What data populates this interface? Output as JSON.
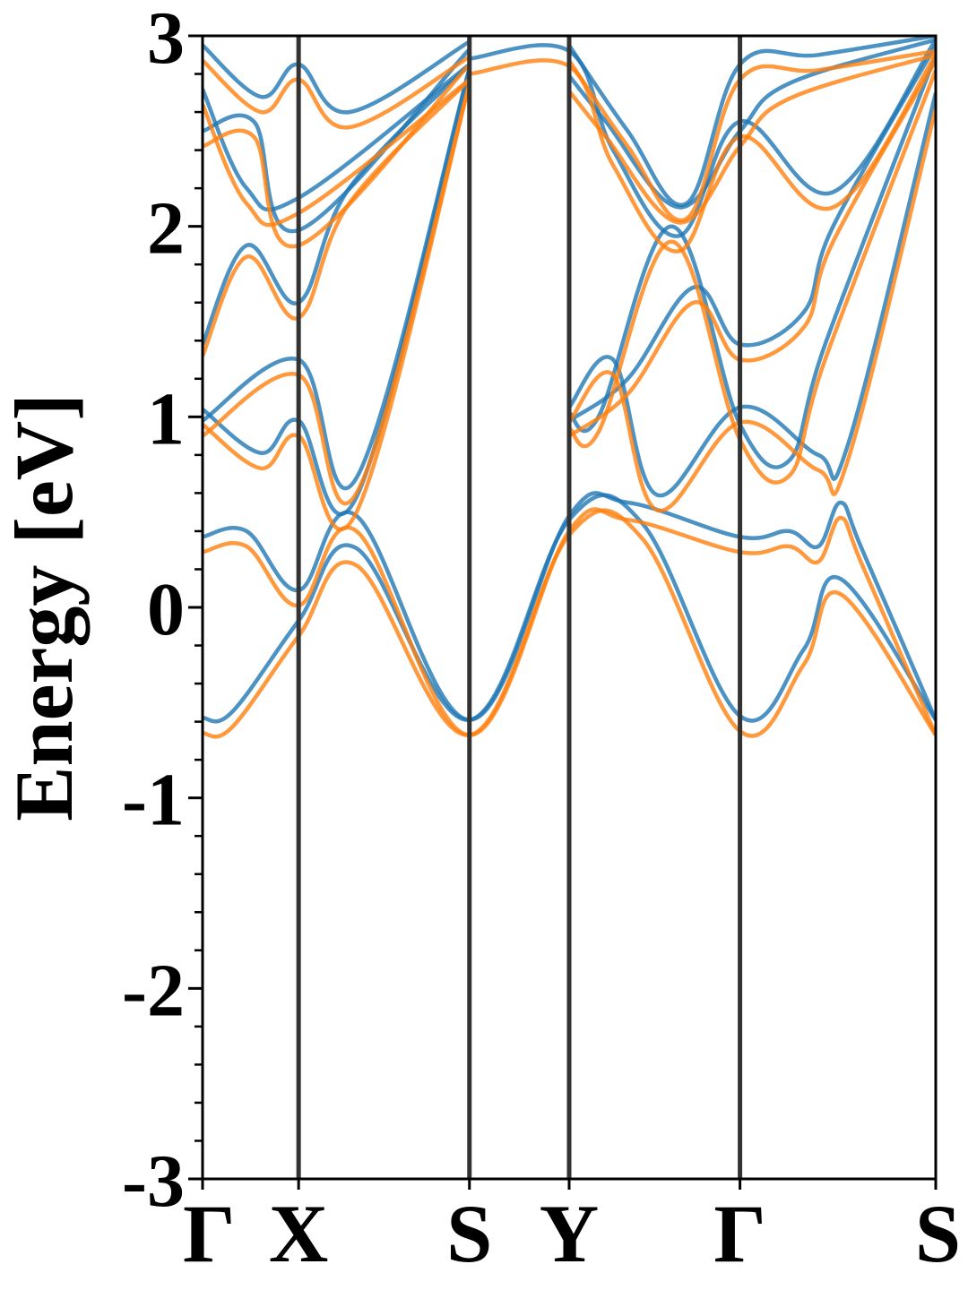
{
  "chart_data": {
    "type": "line",
    "title": "",
    "xlabel": "",
    "ylabel": "Energy [eV]",
    "ylim": [
      -3,
      3
    ],
    "yticks": [
      {
        "value": 3,
        "label": "3"
      },
      {
        "value": 2,
        "label": "2"
      },
      {
        "value": 1,
        "label": "1"
      },
      {
        "value": 0,
        "label": "0"
      },
      {
        "value": -1,
        "label": "-1"
      },
      {
        "value": -2,
        "label": "-2"
      },
      {
        "value": -3,
        "label": "-3"
      }
    ],
    "y_minor_step": 0.2,
    "k_path": [
      {
        "label": "Γ",
        "k": 0.0
      },
      {
        "label": "X",
        "k": 0.131
      },
      {
        "label": "S",
        "k": 0.364
      },
      {
        "label": "Y",
        "k": 0.5
      },
      {
        "label": "Γ",
        "k": 0.733
      },
      {
        "label": "S",
        "k": 1.0
      }
    ],
    "xlim": [
      0,
      1
    ],
    "grid": false,
    "legend": "none",
    "series": [
      {
        "color": "#1f77b4",
        "bands": [
          {
            "k": [
              0,
              0.04,
              0.131,
              0.21,
              0.364,
              0.5,
              0.6,
              0.733,
              0.82,
              0.87,
              1.0
            ],
            "e": [
              -0.58,
              -0.55,
              -0.07,
              0.31,
              -0.59,
              0.46,
              0.44,
              -0.57,
              -0.22,
              0.15,
              -0.59
            ]
          },
          {
            "k": [
              0,
              0.06,
              0.131,
              0.21,
              0.364,
              0.5,
              0.58,
              0.733,
              0.8,
              0.84,
              0.87,
              0.9,
              1.0
            ],
            "e": [
              0.37,
              0.4,
              0.09,
              0.48,
              -0.59,
              0.48,
              0.55,
              0.37,
              0.4,
              0.32,
              0.55,
              0.3,
              -0.59
            ]
          },
          {
            "k": [
              0,
              0.08,
              0.131,
              0.21,
              0.364
            ],
            "e": [
              1.04,
              0.81,
              0.98,
              0.58,
              2.83
            ]
          },
          {
            "k": [
              0,
              0.131,
              0.21,
              0.364
            ],
            "e": [
              0.98,
              1.3,
              0.68,
              2.83
            ]
          },
          {
            "k": [
              0.5,
              0.56,
              0.62,
              0.733,
              0.84,
              0.88,
              1.0
            ],
            "e": [
              1.05,
              1.3,
              0.59,
              1.05,
              0.8,
              0.85,
              2.7
            ]
          },
          {
            "k": [
              0.5,
              0.54,
              0.64,
              0.733,
              0.8,
              0.85,
              1.0
            ],
            "e": [
              1.02,
              1.0,
              2.0,
              0.96,
              0.77,
              1.39,
              2.9
            ]
          },
          {
            "k": [
              0.5,
              0.58,
              0.67,
              0.733,
              0.82,
              0.86,
              1.0
            ],
            "e": [
              0.98,
              1.2,
              1.68,
              1.38,
              1.55,
              2.0,
              2.95
            ]
          },
          {
            "k": [
              0,
              0.06,
              0.131,
              0.2,
              0.364
            ],
            "e": [
              1.38,
              1.9,
              1.6,
              2.2,
              2.85
            ]
          },
          {
            "k": [
              0,
              0.06,
              0.131,
              0.364
            ],
            "e": [
              2.72,
              2.2,
              2.15,
              2.85
            ]
          },
          {
            "k": [
              0,
              0.07,
              0.131,
              0.364
            ],
            "e": [
              2.5,
              2.55,
              1.98,
              2.93
            ]
          },
          {
            "k": [
              0,
              0.08,
              0.131,
              0.2,
              0.364
            ],
            "e": [
              2.95,
              2.68,
              2.85,
              2.6,
              2.97
            ]
          },
          {
            "k": [
              0.364,
              0.5,
              0.56,
              0.65,
              0.733,
              0.86,
              1.0
            ],
            "e": [
              2.88,
              2.92,
              2.4,
              1.95,
              2.55,
              2.18,
              2.98
            ]
          },
          {
            "k": [
              0.5,
              0.55,
              0.65,
              0.733,
              0.8,
              1.0
            ],
            "e": [
              2.79,
              2.55,
              2.1,
              2.5,
              2.75,
              2.98
            ]
          },
          {
            "k": [
              0.5,
              0.58,
              0.66,
              0.733,
              0.84,
              1.0
            ],
            "e": [
              2.95,
              2.5,
              2.12,
              2.85,
              2.9,
              3.0
            ]
          }
        ]
      },
      {
        "color": "#ff7f0e",
        "bands": [
          {
            "k": [
              0,
              0.04,
              0.131,
              0.21,
              0.364,
              0.5,
              0.6,
              0.733,
              0.82,
              0.87,
              1.0
            ],
            "e": [
              -0.66,
              -0.63,
              -0.15,
              0.22,
              -0.67,
              0.38,
              0.36,
              -0.65,
              -0.3,
              0.07,
              -0.67
            ]
          },
          {
            "k": [
              0,
              0.06,
              0.131,
              0.21,
              0.364,
              0.5,
              0.58,
              0.733,
              0.8,
              0.84,
              0.87,
              0.9,
              1.0
            ],
            "e": [
              0.29,
              0.32,
              0.01,
              0.4,
              -0.67,
              0.4,
              0.46,
              0.29,
              0.32,
              0.24,
              0.47,
              0.22,
              -0.67
            ]
          },
          {
            "k": [
              0,
              0.08,
              0.131,
              0.21,
              0.364
            ],
            "e": [
              0.96,
              0.73,
              0.9,
              0.5,
              2.75
            ]
          },
          {
            "k": [
              0,
              0.131,
              0.21,
              0.364
            ],
            "e": [
              0.9,
              1.22,
              0.6,
              2.75
            ]
          },
          {
            "k": [
              0.5,
              0.56,
              0.62,
              0.733,
              0.84,
              0.88,
              1.0
            ],
            "e": [
              0.97,
              1.22,
              0.51,
              0.97,
              0.72,
              0.77,
              2.62
            ]
          },
          {
            "k": [
              0.5,
              0.54,
              0.64,
              0.733,
              0.8,
              0.85,
              1.0
            ],
            "e": [
              0.94,
              0.92,
              1.92,
              0.88,
              0.69,
              1.31,
              2.82
            ]
          },
          {
            "k": [
              0.5,
              0.58,
              0.67,
              0.733,
              0.82,
              0.86,
              1.0
            ],
            "e": [
              0.9,
              1.12,
              1.6,
              1.3,
              1.47,
              1.92,
              2.87
            ]
          },
          {
            "k": [
              0,
              0.06,
              0.131,
              0.2,
              0.364
            ],
            "e": [
              1.32,
              1.84,
              1.52,
              2.12,
              2.77
            ]
          },
          {
            "k": [
              0,
              0.06,
              0.131,
              0.364
            ],
            "e": [
              2.64,
              2.12,
              2.07,
              2.77
            ]
          },
          {
            "k": [
              0,
              0.07,
              0.131,
              0.364
            ],
            "e": [
              2.42,
              2.47,
              1.9,
              2.85
            ]
          },
          {
            "k": [
              0,
              0.08,
              0.131,
              0.2,
              0.364
            ],
            "e": [
              2.87,
              2.6,
              2.77,
              2.52,
              2.89
            ]
          },
          {
            "k": [
              0.364,
              0.5,
              0.56,
              0.65,
              0.733,
              0.86,
              1.0
            ],
            "e": [
              2.8,
              2.84,
              2.32,
              1.87,
              2.47,
              2.1,
              2.9
            ]
          },
          {
            "k": [
              0.5,
              0.55,
              0.65,
              0.733,
              0.8,
              1.0
            ],
            "e": [
              2.71,
              2.47,
              2.02,
              2.42,
              2.67,
              2.9
            ]
          },
          {
            "k": [
              0.5,
              0.58,
              0.66,
              0.733,
              0.84,
              1.0
            ],
            "e": [
              2.87,
              2.42,
              2.04,
              2.77,
              2.82,
              2.92
            ]
          }
        ]
      }
    ]
  }
}
